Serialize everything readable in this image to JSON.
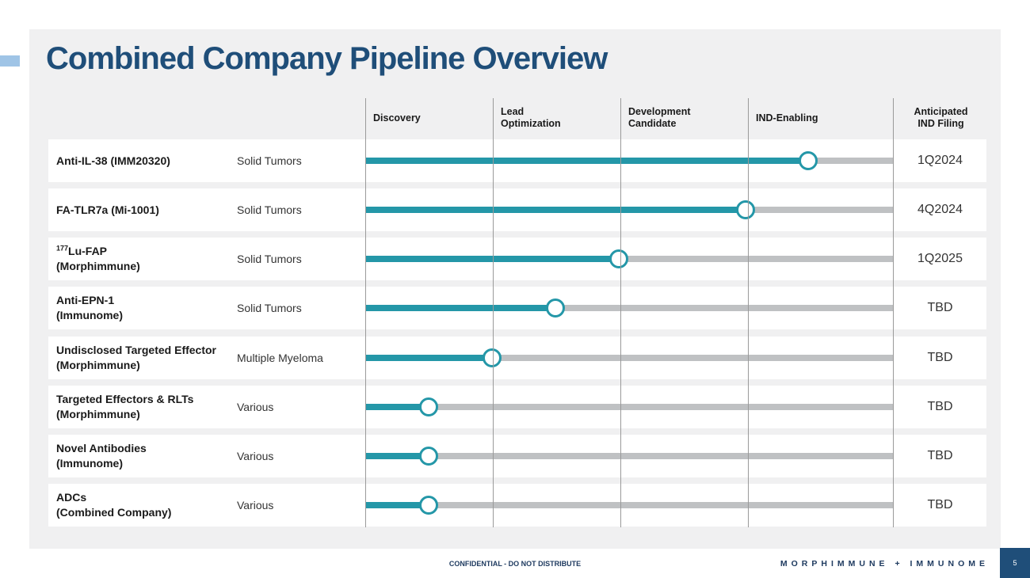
{
  "title": "Combined Company Pipeline Overview",
  "stages": {
    "discovery": "Discovery",
    "lead_1": "Lead",
    "lead_2": "Optimization",
    "dev_1": "Development",
    "dev_2": "Candidate",
    "ind_enabling": "IND-Enabling",
    "anticipated_1": "Anticipated",
    "anticipated_2": "IND Filing"
  },
  "colors": {
    "title": "#1f4e79",
    "progress": "#2497a8",
    "track": "#bfc1c3",
    "panel": "#f0f0f1"
  },
  "programs": [
    {
      "name_sup": "",
      "name_line1": "Anti-IL-38 (IMM20320)",
      "name_line2": "",
      "indication": "Solid Tumors",
      "ind_filing": "1Q2024",
      "progress": 0.84
    },
    {
      "name_sup": "",
      "name_line1": "FA-TLR7a (Mi-1001)",
      "name_line2": "",
      "indication": "Solid Tumors",
      "ind_filing": "4Q2024",
      "progress": 0.72
    },
    {
      "name_sup": "177",
      "name_line1": "Lu-FAP",
      "name_line2": "(Morphimmune)",
      "indication": "Solid Tumors",
      "ind_filing": "1Q2025",
      "progress": 0.48
    },
    {
      "name_sup": "",
      "name_line1": "Anti-EPN-1",
      "name_line2": "(Immunome)",
      "indication": "Solid Tumors",
      "ind_filing": "TBD",
      "progress": 0.36
    },
    {
      "name_sup": "",
      "name_line1": "Undisclosed Targeted Effector",
      "name_line2": "(Morphimmune)",
      "indication": "Multiple Myeloma",
      "ind_filing": "TBD",
      "progress": 0.24
    },
    {
      "name_sup": "",
      "name_line1": "Targeted Effectors & RLTs",
      "name_line2": "(Morphimmune)",
      "indication": "Various",
      "ind_filing": "TBD",
      "progress": 0.12
    },
    {
      "name_sup": "",
      "name_line1": "Novel Antibodies",
      "name_line2": "(Immunome)",
      "indication": "Various",
      "ind_filing": "TBD",
      "progress": 0.12
    },
    {
      "name_sup": "",
      "name_line1": "ADCs",
      "name_line2": "(Combined Company)",
      "indication": "Various",
      "ind_filing": "TBD",
      "progress": 0.12
    }
  ],
  "footer": {
    "confidential": "CONFIDENTIAL - DO NOT DISTRIBUTE",
    "brand": "MORPHIMMUNE + IMMUNOME",
    "page_number": "5"
  }
}
